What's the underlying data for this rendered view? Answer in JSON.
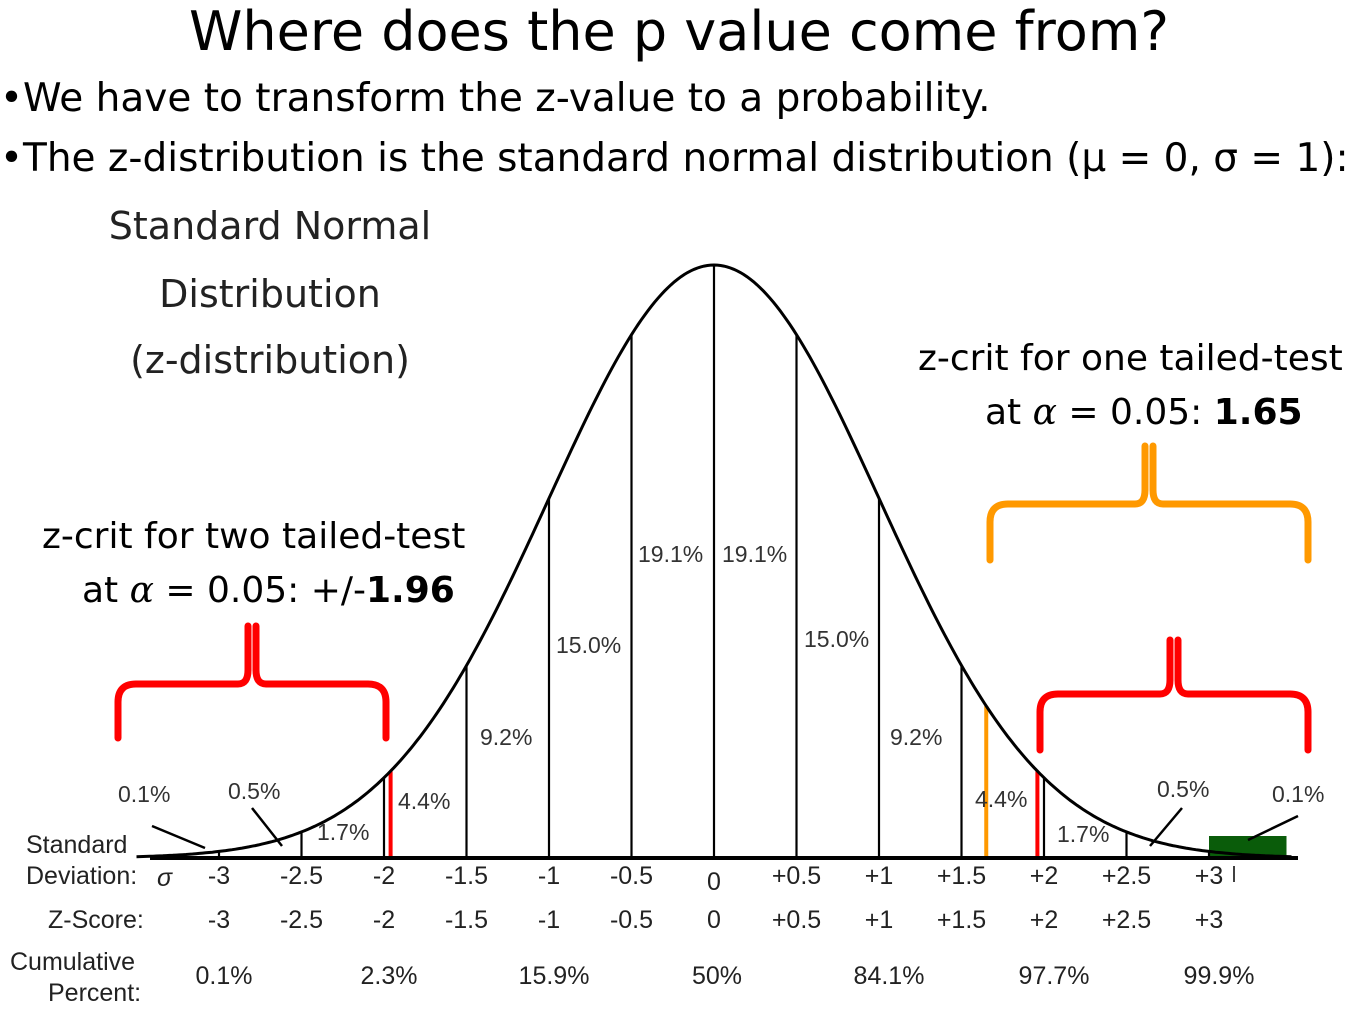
{
  "slide": {
    "title": "Where does the p value come from?",
    "bullets": [
      "•We have to transform the z-value to a probability.",
      "•The z-distribution is the standard normal distribution (μ = 0, σ = 1):"
    ]
  },
  "annotations": {
    "one_tailed_line1": "z-crit for one tailed-test",
    "one_tailed_line2_prefix": "at ",
    "one_tailed_alpha": "α",
    "one_tailed_line2_mid": " = 0.05: ",
    "one_tailed_value": "1.65",
    "two_tailed_line1": "z-crit for two tailed-test",
    "two_tailed_line2_prefix": "at ",
    "two_tailed_alpha": "α",
    "two_tailed_line2_mid": " = 0.05: +/-",
    "two_tailed_value": "1.96"
  },
  "colors": {
    "two_tailed": "#ff0000",
    "one_tailed": "#ff9900",
    "tail_region": "#0a5c0a",
    "curve": "#000000"
  },
  "chart_data": {
    "type": "area",
    "title_lines": [
      "Standard Normal",
      "Distribution",
      "(z-distribution)"
    ],
    "distribution": {
      "mean": 0,
      "sd": 1
    },
    "xlim": [
      -3.5,
      3.5
    ],
    "segment_boundaries": [
      -3,
      -2.5,
      -2,
      -1.5,
      -1,
      -0.5,
      0,
      0.5,
      1,
      1.5,
      2,
      2.5,
      3
    ],
    "segment_labels": [
      {
        "label": "0.1%",
        "from": -3.5,
        "to": -3
      },
      {
        "label": "0.5%",
        "from": -3,
        "to": -2.5
      },
      {
        "label": "1.7%",
        "from": -2.5,
        "to": -2
      },
      {
        "label": "4.4%",
        "from": -2,
        "to": -1.5
      },
      {
        "label": "9.2%",
        "from": -1.5,
        "to": -1
      },
      {
        "label": "15.0%",
        "from": -1,
        "to": -0.5
      },
      {
        "label": "19.1%",
        "from": -0.5,
        "to": 0
      },
      {
        "label": "19.1%",
        "from": 0,
        "to": 0.5
      },
      {
        "label": "15.0%",
        "from": 0.5,
        "to": 1
      },
      {
        "label": "9.2%",
        "from": 1,
        "to": 1.5
      },
      {
        "label": "4.4%",
        "from": 1.5,
        "to": 2
      },
      {
        "label": "1.7%",
        "from": 2,
        "to": 2.5
      },
      {
        "label": "0.5%",
        "from": 2.5,
        "to": 3
      },
      {
        "label": "0.1%",
        "from": 3,
        "to": 3.5
      }
    ],
    "critical_lines": [
      {
        "z": -1.96,
        "color": "two_tailed"
      },
      {
        "z": 1.96,
        "color": "two_tailed"
      },
      {
        "z": 1.65,
        "color": "one_tailed"
      }
    ],
    "shaded_tail": {
      "from": 3,
      "to": 3.5
    },
    "row_labels": {
      "sd": [
        "Standard",
        "Deviation:"
      ],
      "sd_symbol": "σ",
      "z": "Z-Score:",
      "cum": [
        "Cumulative",
        "Percent:"
      ]
    },
    "sd_ticks": [
      "-3",
      "-2.5",
      "-2",
      "-1.5",
      "-1",
      "-0.5",
      "0",
      "+0.5",
      "+1",
      "+1.5",
      "+2",
      "+2.5",
      "+3"
    ],
    "z_ticks": [
      "-3",
      "-2.5",
      "-2",
      "-1.5",
      "-1",
      "-0.5",
      "0",
      "+0.5",
      "+1",
      "+1.5",
      "+2",
      "+2.5",
      "+3"
    ],
    "cumulative": [
      {
        "z": -3,
        "label": "0.1%"
      },
      {
        "z": -2,
        "label": "2.3%"
      },
      {
        "z": -1,
        "label": "15.9%"
      },
      {
        "z": 0,
        "label": "50%"
      },
      {
        "z": 1,
        "label": "84.1%"
      },
      {
        "z": 2,
        "label": "97.7%"
      },
      {
        "z": 3,
        "label": "99.9%"
      }
    ]
  }
}
